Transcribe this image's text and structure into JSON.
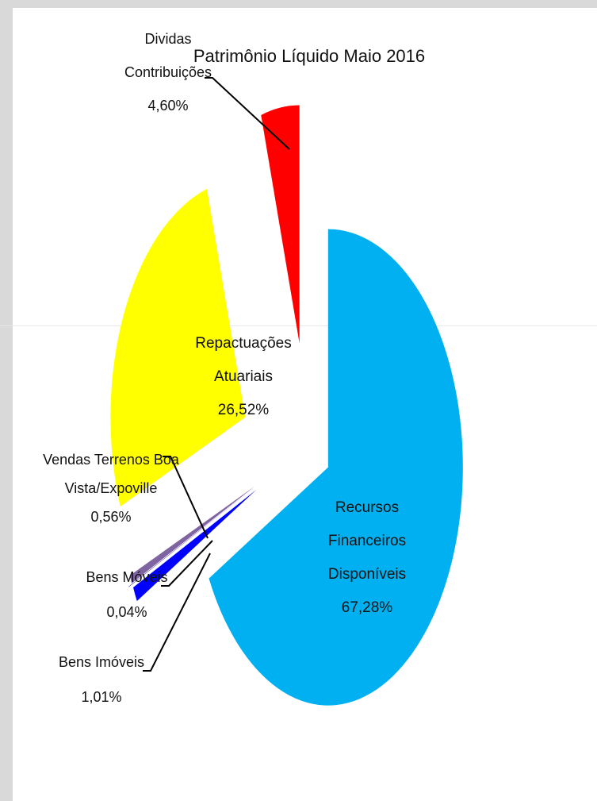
{
  "chart_data": {
    "type": "pie",
    "title": "Patrimônio Líquido Maio 2016",
    "slices": [
      {
        "key": "recursos",
        "label_lines": [
          "Recursos",
          "Financeiros",
          "Disponíveis"
        ],
        "value_label": "67,28%",
        "value": 67.28,
        "color": "#00b0f0"
      },
      {
        "key": "bens-imoveis",
        "label_lines": [
          "Bens Imóveis"
        ],
        "value_label": "1,01%",
        "value": 1.01,
        "color": "#0000ff"
      },
      {
        "key": "bens-moveis",
        "label_lines": [
          "Bens Móveis"
        ],
        "value_label": "0,04%",
        "value": 0.04,
        "color": "#3a3a8c"
      },
      {
        "key": "vendas-terrenos",
        "label_lines": [
          "Vendas Terrenos Boa",
          "Vista/Expoville"
        ],
        "value_label": "0,56%",
        "value": 0.56,
        "color": "#8064a2"
      },
      {
        "key": "repactuacoes",
        "label_lines": [
          "Repactuações",
          "Atuariais"
        ],
        "value_label": "26,52%",
        "value": 26.52,
        "color": "#ffff00"
      },
      {
        "key": "dividas",
        "label_lines": [
          "Dividas",
          "Contribuições"
        ],
        "value_label": "4,60%",
        "value": 4.6,
        "color": "#ff0000"
      }
    ]
  }
}
